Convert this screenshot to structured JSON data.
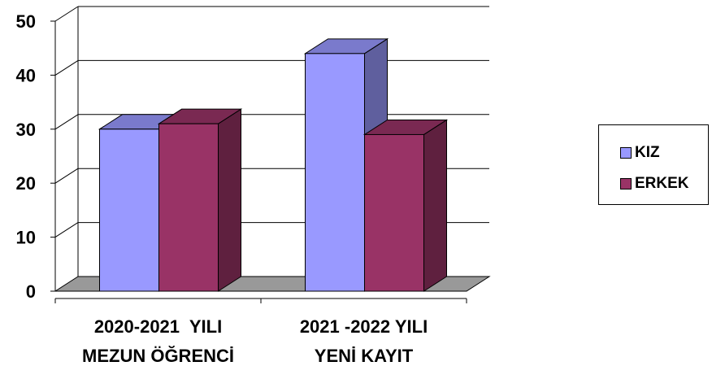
{
  "chart_data": {
    "type": "bar",
    "title": "",
    "xlabel": "",
    "ylabel": "",
    "ylim": [
      0,
      50
    ],
    "yticks": [
      "0",
      "10",
      "20",
      "30",
      "40",
      "50"
    ],
    "categories": [
      [
        "2020-2021  YILI",
        "MEZUN ÖĞRENCİ"
      ],
      [
        "2021 -2022 YILI",
        "YENİ KAYIT"
      ]
    ],
    "series": [
      {
        "name": "KIZ",
        "values": [
          30,
          44
        ],
        "color": "#9999ff"
      },
      {
        "name": "ERKEK",
        "values": [
          31,
          29
        ],
        "color": "#993366"
      }
    ],
    "grid": true,
    "legend": "right",
    "style": "3d-clustered-column"
  }
}
